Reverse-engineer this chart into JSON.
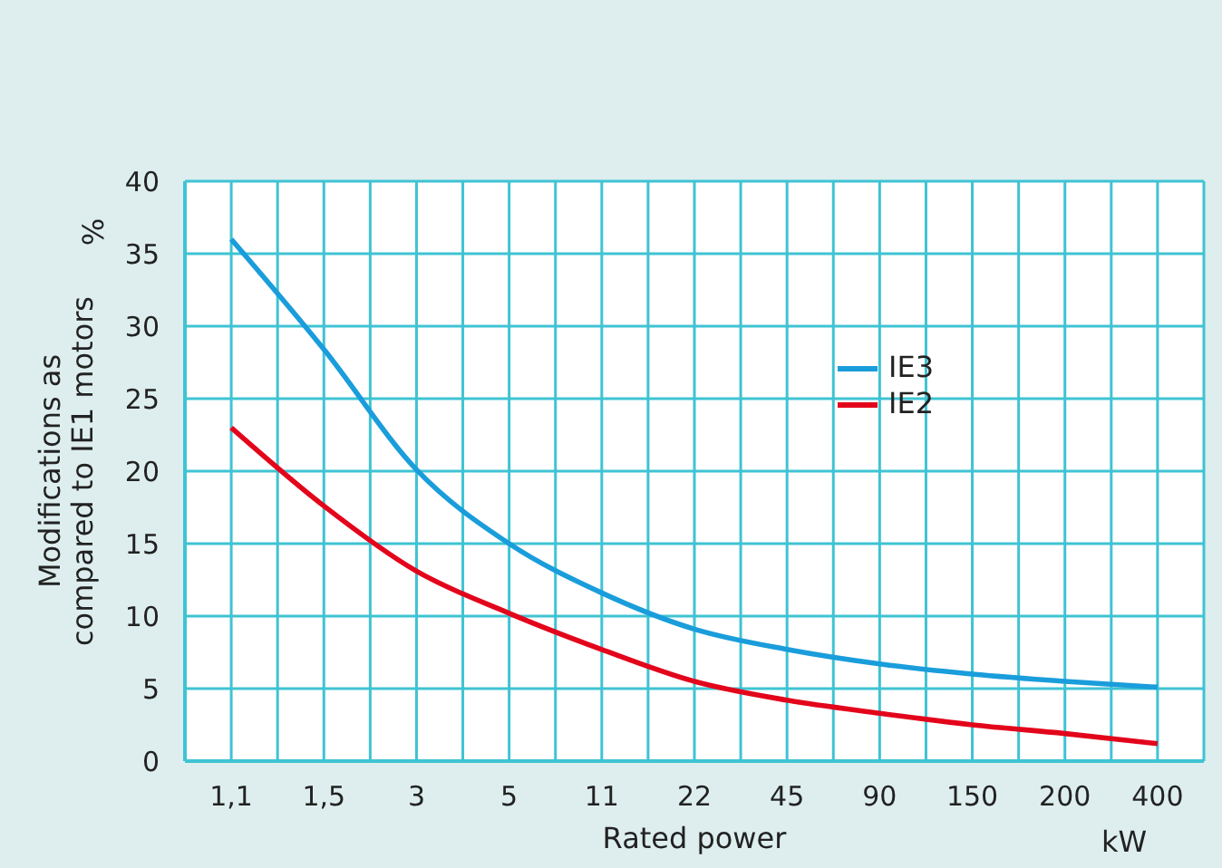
{
  "chart_data": {
    "type": "line",
    "xlabel": "Rated power",
    "ylabel": "Modifications as\ncompared to IE1 motors",
    "annotations": [
      "%",
      "kW"
    ],
    "categories": [
      "1,1",
      "1,5",
      "3",
      "5",
      "11",
      "22",
      "45",
      "90",
      "150",
      "200",
      "400"
    ],
    "series": [
      {
        "name": "IE3",
        "color": "#1a9ddb",
        "values": [
          36,
          28.4,
          20.1,
          15,
          11.6,
          9.1,
          7.7,
          6.7,
          6,
          5.5,
          5.1
        ]
      },
      {
        "name": "IE2",
        "color": "#e3051b",
        "values": [
          23,
          17.6,
          13.1,
          10.2,
          7.7,
          5.5,
          4.2,
          3.3,
          2.5,
          1.9,
          1.2
        ]
      }
    ],
    "ylim": [
      0,
      40
    ],
    "yticks": [
      0,
      5,
      10,
      15,
      20,
      25,
      30,
      35,
      40
    ],
    "grid": true,
    "legend": "right"
  }
}
